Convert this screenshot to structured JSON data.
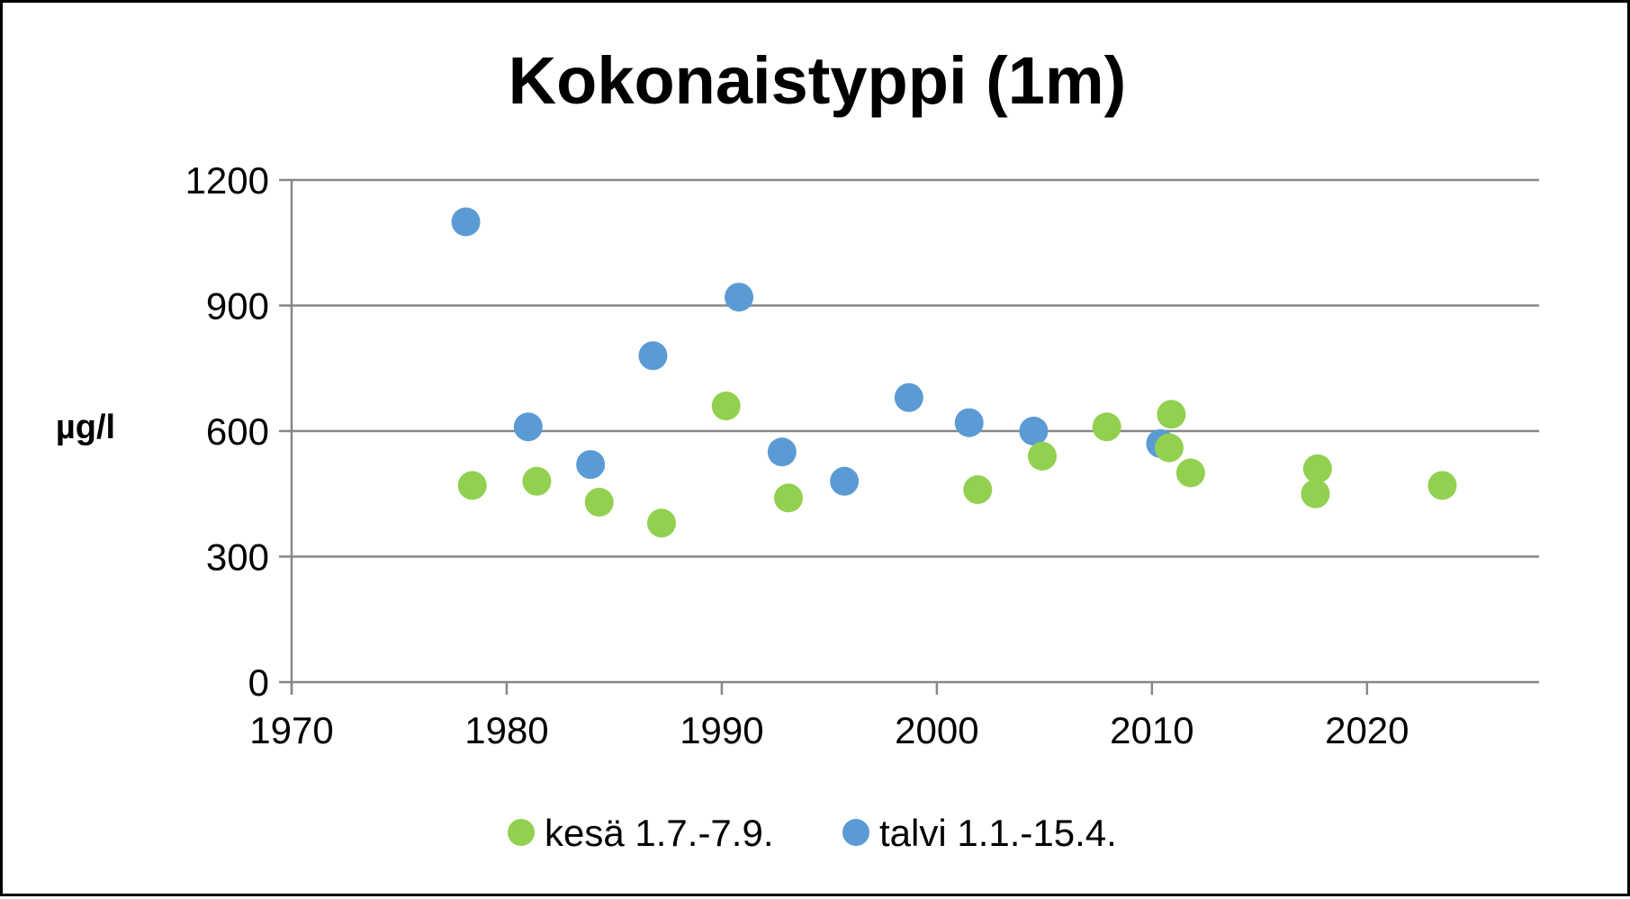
{
  "chart_data": {
    "type": "scatter",
    "title": "Kokonaistyppi (1m)",
    "xlabel": "",
    "ylabel": "µg/l",
    "xlim": [
      1970,
      2028
    ],
    "ylim": [
      0,
      1200
    ],
    "x_ticks": [
      1970,
      1980,
      1990,
      2000,
      2010,
      2020
    ],
    "y_ticks": [
      0,
      300,
      600,
      900,
      1200
    ],
    "grid": "horizontal",
    "legend": "bottom",
    "series": [
      {
        "name": "kesä 1.7.-7.9.",
        "color": "#92d050",
        "points": [
          {
            "x": 1978.4,
            "y": 470
          },
          {
            "x": 1981.4,
            "y": 480
          },
          {
            "x": 1984.3,
            "y": 430
          },
          {
            "x": 1987.2,
            "y": 380
          },
          {
            "x": 1990.2,
            "y": 660
          },
          {
            "x": 1993.1,
            "y": 440
          },
          {
            "x": 2001.9,
            "y": 460
          },
          {
            "x": 2004.9,
            "y": 540
          },
          {
            "x": 2007.9,
            "y": 610
          },
          {
            "x": 2010.8,
            "y": 560
          },
          {
            "x": 2010.9,
            "y": 640
          },
          {
            "x": 2011.8,
            "y": 500
          },
          {
            "x": 2017.6,
            "y": 450
          },
          {
            "x": 2017.7,
            "y": 510
          },
          {
            "x": 2023.5,
            "y": 470
          }
        ]
      },
      {
        "name": "talvi 1.1.-15.4.",
        "color": "#5b9bd5",
        "points": [
          {
            "x": 1978.1,
            "y": 1100
          },
          {
            "x": 1981.0,
            "y": 610
          },
          {
            "x": 1983.9,
            "y": 520
          },
          {
            "x": 1986.8,
            "y": 780
          },
          {
            "x": 1990.8,
            "y": 920
          },
          {
            "x": 1992.8,
            "y": 550
          },
          {
            "x": 1995.7,
            "y": 480
          },
          {
            "x": 1998.7,
            "y": 680
          },
          {
            "x": 2001.5,
            "y": 620
          },
          {
            "x": 2004.5,
            "y": 600
          },
          {
            "x": 2010.4,
            "y": 570
          }
        ]
      }
    ]
  }
}
